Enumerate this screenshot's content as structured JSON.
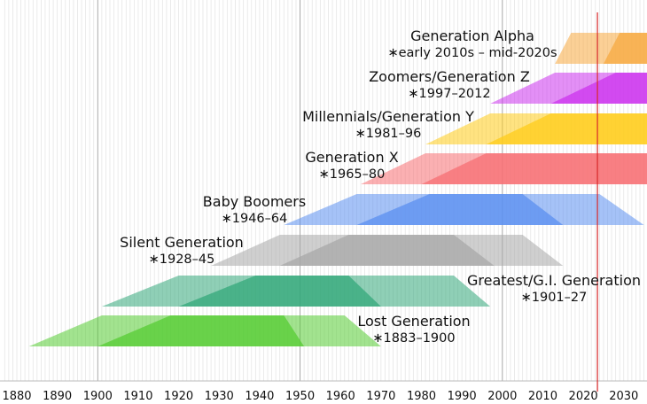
{
  "chart_data": {
    "type": "timeline",
    "xlim": [
      1877,
      2036
    ],
    "x_ticks": [
      1880,
      1890,
      1900,
      1910,
      1920,
      1930,
      1940,
      1950,
      1960,
      1970,
      1980,
      1990,
      2000,
      2010,
      2020,
      2030
    ],
    "x_tick_labels": [
      "1880",
      "1890",
      "1900",
      "1910",
      "1920",
      "1930",
      "1940",
      "1950",
      "1960",
      "1970",
      "1980",
      "1990",
      "2000",
      "2010",
      "2020",
      "2030"
    ],
    "grid": "vertical, minor every year, major every 50 years",
    "current_year_marker": 2023.5,
    "marker_color": "#d62728",
    "generations": [
      {
        "name": "Generation Alpha",
        "years": "∗early 2010s – mid-2020s",
        "color": "#f7a940",
        "birth_start": 2012,
        "birth_end": 2025,
        "outer": [
          2013,
          2017,
          2036,
          2036
        ],
        "inner": [
          2025,
          2029,
          2036,
          2036
        ]
      },
      {
        "name": "Zoomers/Generation Z",
        "years": "∗1997–2012",
        "color": "#cc33ee",
        "birth_start": 1997,
        "birth_end": 2012,
        "outer": [
          1997,
          2013,
          2036,
          2036
        ],
        "inner": [
          2012,
          2028,
          2036,
          2036
        ]
      },
      {
        "name": "Millennials/Generation Y",
        "years": "∗1981–96",
        "color": "#ffcc1a",
        "birth_start": 1981,
        "birth_end": 1996,
        "outer": [
          1981,
          1997,
          2036,
          2036
        ],
        "inner": [
          1996,
          2012,
          2036,
          2036
        ]
      },
      {
        "name": "Generation X",
        "years": "∗1965–80",
        "color": "#f76f73",
        "birth_start": 1965,
        "birth_end": 1980,
        "outer": [
          1965,
          1981,
          2036,
          2036
        ],
        "inner": [
          1980,
          1996,
          2036,
          2036
        ]
      },
      {
        "name": "Baby Boomers",
        "years": "∗1946–64",
        "color": "#5b8ff0",
        "birth_start": 1946,
        "birth_end": 1964,
        "outer": [
          1946,
          1964,
          2024,
          2035
        ],
        "inner": [
          1964,
          1982,
          2005,
          2015
        ]
      },
      {
        "name": "Silent Generation",
        "years": "∗1928–45",
        "color": "#a8a8a8",
        "birth_start": 1928,
        "birth_end": 1945,
        "outer": [
          1928,
          1945,
          2005,
          2015
        ],
        "inner": [
          1945,
          1962,
          1988,
          1998
        ]
      },
      {
        "name": "Greatest/G.I. Generation",
        "years": "∗1901–27",
        "color": "#33a87a",
        "birth_start": 1901,
        "birth_end": 1927,
        "outer": [
          1901,
          1920,
          1988,
          1997
        ],
        "inner": [
          1920,
          1939,
          1962,
          1970
        ]
      },
      {
        "name": "Lost Generation",
        "years": "∗1883–1900",
        "color": "#55cc33",
        "birth_start": 1883,
        "birth_end": 1900,
        "outer": [
          1883,
          1901,
          1961,
          1970
        ],
        "inner": [
          1900,
          1918,
          1946,
          1951
        ]
      }
    ]
  }
}
